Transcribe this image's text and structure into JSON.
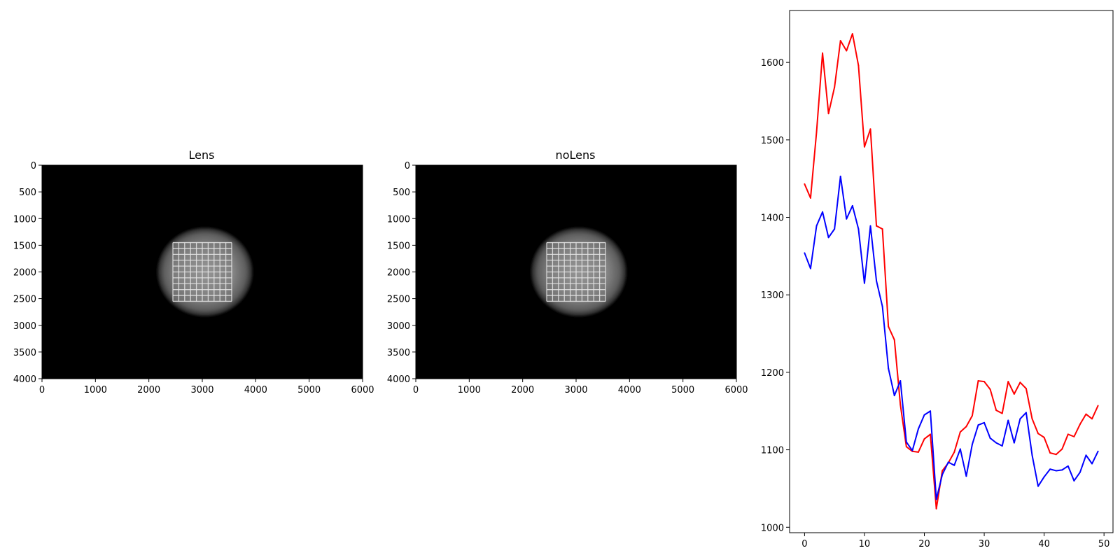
{
  "chart_data": [
    {
      "type": "heatmap",
      "title": "Lens",
      "colormap": "gray",
      "xlim": [
        0,
        6000
      ],
      "ylim": [
        4000,
        0
      ],
      "xticks": [
        "0",
        "1000",
        "2000",
        "3000",
        "4000",
        "5000",
        "6000"
      ],
      "yticks": [
        "0",
        "500",
        "1000",
        "1500",
        "2000",
        "2500",
        "3000",
        "3500",
        "4000"
      ],
      "disk": {
        "center": [
          3050,
          2000
        ],
        "radius": 900
      },
      "grid_region": {
        "x": [
          2450,
          3550
        ],
        "y": [
          1450,
          2550
        ]
      },
      "grid_lines": 10
    },
    {
      "type": "heatmap",
      "title": "noLens",
      "colormap": "gray",
      "xlim": [
        0,
        6000
      ],
      "ylim": [
        4000,
        0
      ],
      "xticks": [
        "0",
        "1000",
        "2000",
        "3000",
        "4000",
        "5000",
        "6000"
      ],
      "yticks": [
        "0",
        "500",
        "1000",
        "1500",
        "2000",
        "2500",
        "3000",
        "3500",
        "4000"
      ],
      "disk": {
        "center": [
          3050,
          2000
        ],
        "radius": 900
      },
      "grid_region": {
        "x": [
          2450,
          3550
        ],
        "y": [
          1450,
          2550
        ]
      },
      "grid_lines": 10
    },
    {
      "type": "line",
      "title": "",
      "xlabel": "",
      "ylabel": "",
      "xlim": [
        -2.5,
        51.5
      ],
      "ylim": [
        993,
        1667
      ],
      "xticks": [
        0,
        10,
        20,
        30,
        40,
        50
      ],
      "yticks": [
        1000,
        1100,
        1200,
        1300,
        1400,
        1500,
        1600
      ],
      "x": [
        0,
        1,
        2,
        3,
        4,
        5,
        6,
        7,
        8,
        9,
        10,
        11,
        12,
        13,
        14,
        15,
        16,
        17,
        18,
        19,
        20,
        21,
        22,
        23,
        24,
        25,
        26,
        27,
        28,
        29,
        30,
        31,
        32,
        33,
        34,
        35,
        36,
        37,
        38,
        39,
        40,
        41,
        42,
        43,
        44,
        45,
        46,
        47,
        48,
        49
      ],
      "series": [
        {
          "color": "#ff0000",
          "values": [
            1443,
            1425,
            1510,
            1612,
            1534,
            1568,
            1628,
            1615,
            1637,
            1596,
            1491,
            1514,
            1389,
            1385,
            1259,
            1242,
            1158,
            1104,
            1098,
            1097,
            1114,
            1120,
            1024,
            1073,
            1083,
            1097,
            1123,
            1130,
            1144,
            1189,
            1188,
            1178,
            1151,
            1147,
            1188,
            1172,
            1187,
            1179,
            1140,
            1121,
            1116,
            1096,
            1094,
            1101,
            1120,
            1117,
            1133,
            1146,
            1140,
            1157
          ]
        },
        {
          "color": "#0000ff",
          "values": [
            1354,
            1334,
            1389,
            1407,
            1374,
            1385,
            1453,
            1398,
            1415,
            1385,
            1315,
            1389,
            1318,
            1285,
            1205,
            1170,
            1189,
            1110,
            1099,
            1127,
            1145,
            1150,
            1036,
            1068,
            1084,
            1080,
            1101,
            1066,
            1107,
            1132,
            1135,
            1115,
            1109,
            1105,
            1138,
            1109,
            1140,
            1148,
            1093,
            1053,
            1065,
            1075,
            1073,
            1074,
            1079,
            1060,
            1071,
            1093,
            1082,
            1098
          ]
        }
      ]
    }
  ]
}
